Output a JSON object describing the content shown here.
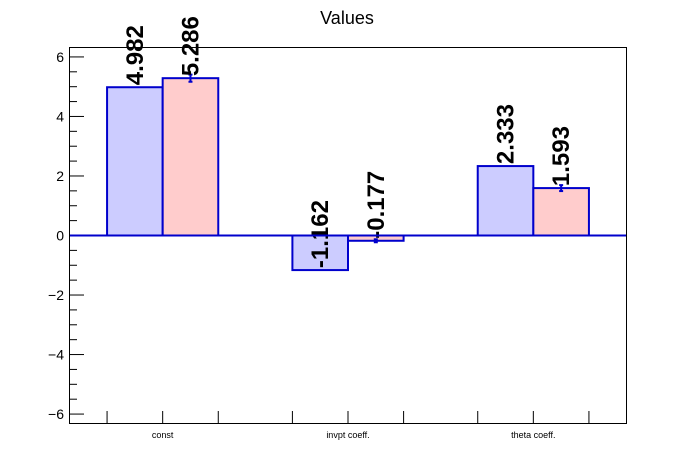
{
  "chart_data": {
    "type": "bar",
    "title": "Values",
    "xlabel": "",
    "ylabel": "",
    "ylim": [
      -6.3,
      6.3
    ],
    "yticks": [
      -6,
      -4,
      -2,
      0,
      2,
      4,
      6
    ],
    "ytick_labels": [
      "−6",
      "−4",
      "−2",
      "0",
      "2",
      "4",
      "6"
    ],
    "categories": [
      "const",
      "invpt coeff.",
      "theta coeff."
    ],
    "grid": false,
    "legend": "none",
    "series": [
      {
        "values": [
          4.982,
          -1.162,
          2.333
        ],
        "labels": [
          "4.982",
          "-1.162",
          "2.333"
        ],
        "fill": "#ccccff",
        "stroke": "#0000cc"
      },
      {
        "values": [
          5.286,
          -0.177,
          1.593
        ],
        "labels": [
          "5.286",
          "-0.177",
          "1.593"
        ],
        "errors": [
          0.12,
          0.05,
          0.1
        ],
        "fill": "#ffcccc",
        "stroke": "#0000cc"
      }
    ]
  }
}
